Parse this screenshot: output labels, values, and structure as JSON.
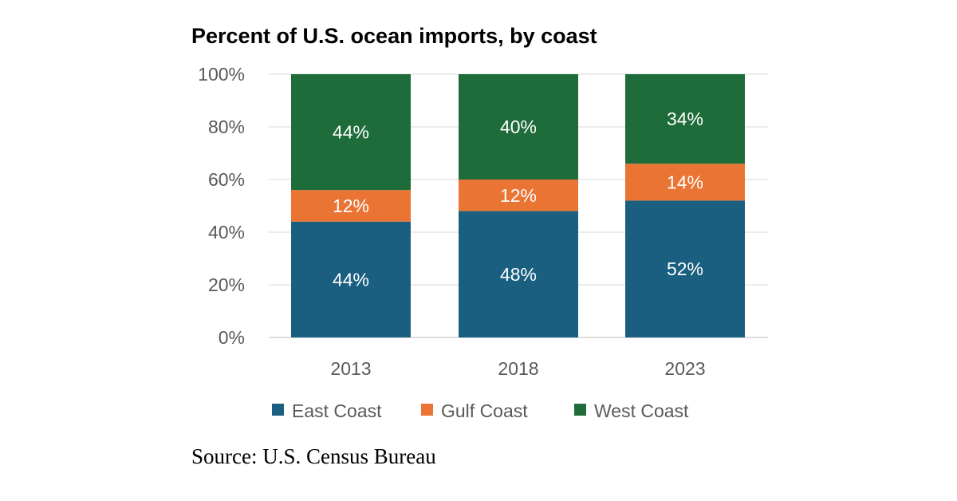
{
  "chart_data": {
    "type": "bar",
    "stacked": true,
    "title": "Percent of U.S. ocean imports, by coast",
    "categories": [
      "2013",
      "2018",
      "2023"
    ],
    "series": [
      {
        "name": "East Coast",
        "values": [
          44,
          48,
          52
        ],
        "labels": [
          "44%",
          "48%",
          "52%"
        ],
        "color": "#1a5f80"
      },
      {
        "name": "Gulf Coast",
        "values": [
          12,
          12,
          14
        ],
        "labels": [
          "12%",
          "12%",
          "14%"
        ],
        "color": "#ea7434"
      },
      {
        "name": "West Coast",
        "values": [
          44,
          40,
          34
        ],
        "labels": [
          "44%",
          "40%",
          "34%"
        ],
        "color": "#1e6c39"
      }
    ],
    "yticks": [
      0,
      20,
      40,
      60,
      80,
      100
    ],
    "ytick_labels": [
      "0%",
      "20%",
      "40%",
      "60%",
      "80%",
      "100%"
    ],
    "ylim": [
      0,
      100
    ],
    "grid": true,
    "legend_position": "bottom",
    "xlabel": "",
    "ylabel": ""
  },
  "source": "Source: U.S. Census Bureau"
}
